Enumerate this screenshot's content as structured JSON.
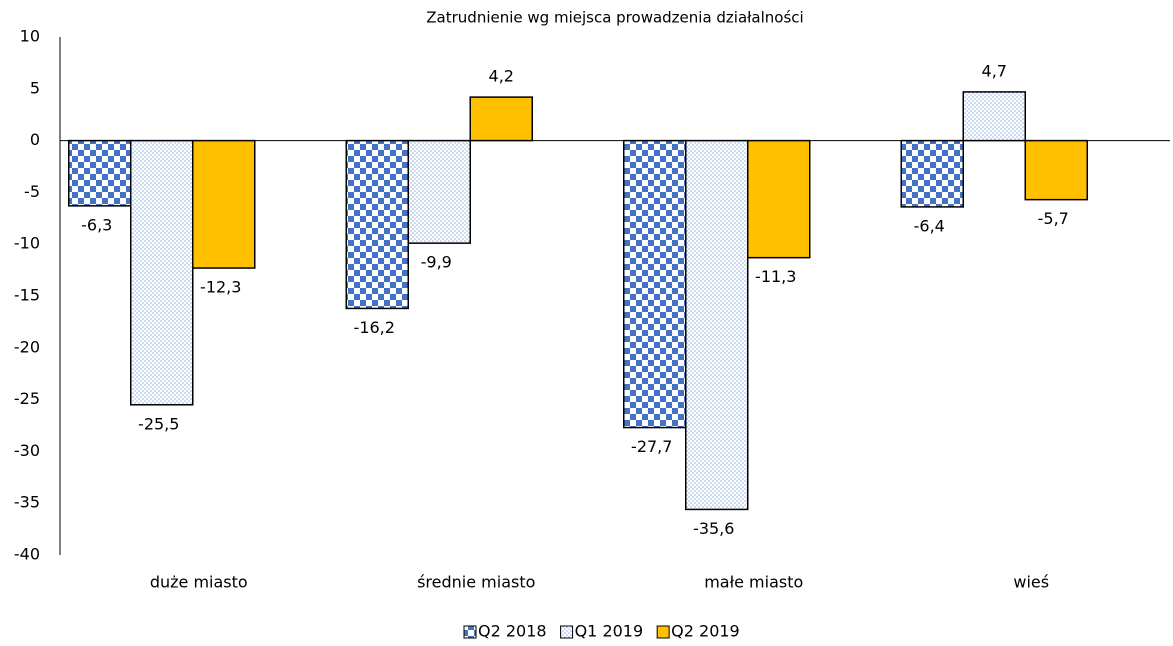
{
  "chart_data": {
    "type": "bar",
    "title": "Zatrudnienie wg miejsca prowadzenia działalności",
    "categories": [
      "duże miasto",
      "średnie miasto",
      "małe miasto",
      "wieś"
    ],
    "series": [
      {
        "name": "Q2 2018",
        "color": "#4472c4",
        "pattern": "checker",
        "values": [
          -6.3,
          -16.2,
          -27.7,
          -6.4
        ],
        "value_labels": [
          "-6,3",
          "-16,2",
          "-27,7",
          "-6,4"
        ]
      },
      {
        "name": "Q1 2019",
        "color": "#8fb4e3",
        "pattern": "dots",
        "values": [
          -25.5,
          -9.9,
          -35.6,
          4.7
        ],
        "value_labels": [
          "-25,5",
          "-9,9",
          "-35,6",
          "4,7"
        ]
      },
      {
        "name": "Q2 2019",
        "color": "#ffc000",
        "pattern": "solid",
        "values": [
          -12.3,
          4.2,
          -11.3,
          -5.7
        ],
        "value_labels": [
          "-12,3",
          "4,2",
          "-11,3",
          "-5,7"
        ]
      }
    ],
    "ylim": [
      -40,
      10
    ],
    "yticks": [
      10,
      5,
      0,
      -5,
      -10,
      -15,
      -20,
      -25,
      -30,
      -35,
      -40
    ],
    "legend": "bottom"
  }
}
